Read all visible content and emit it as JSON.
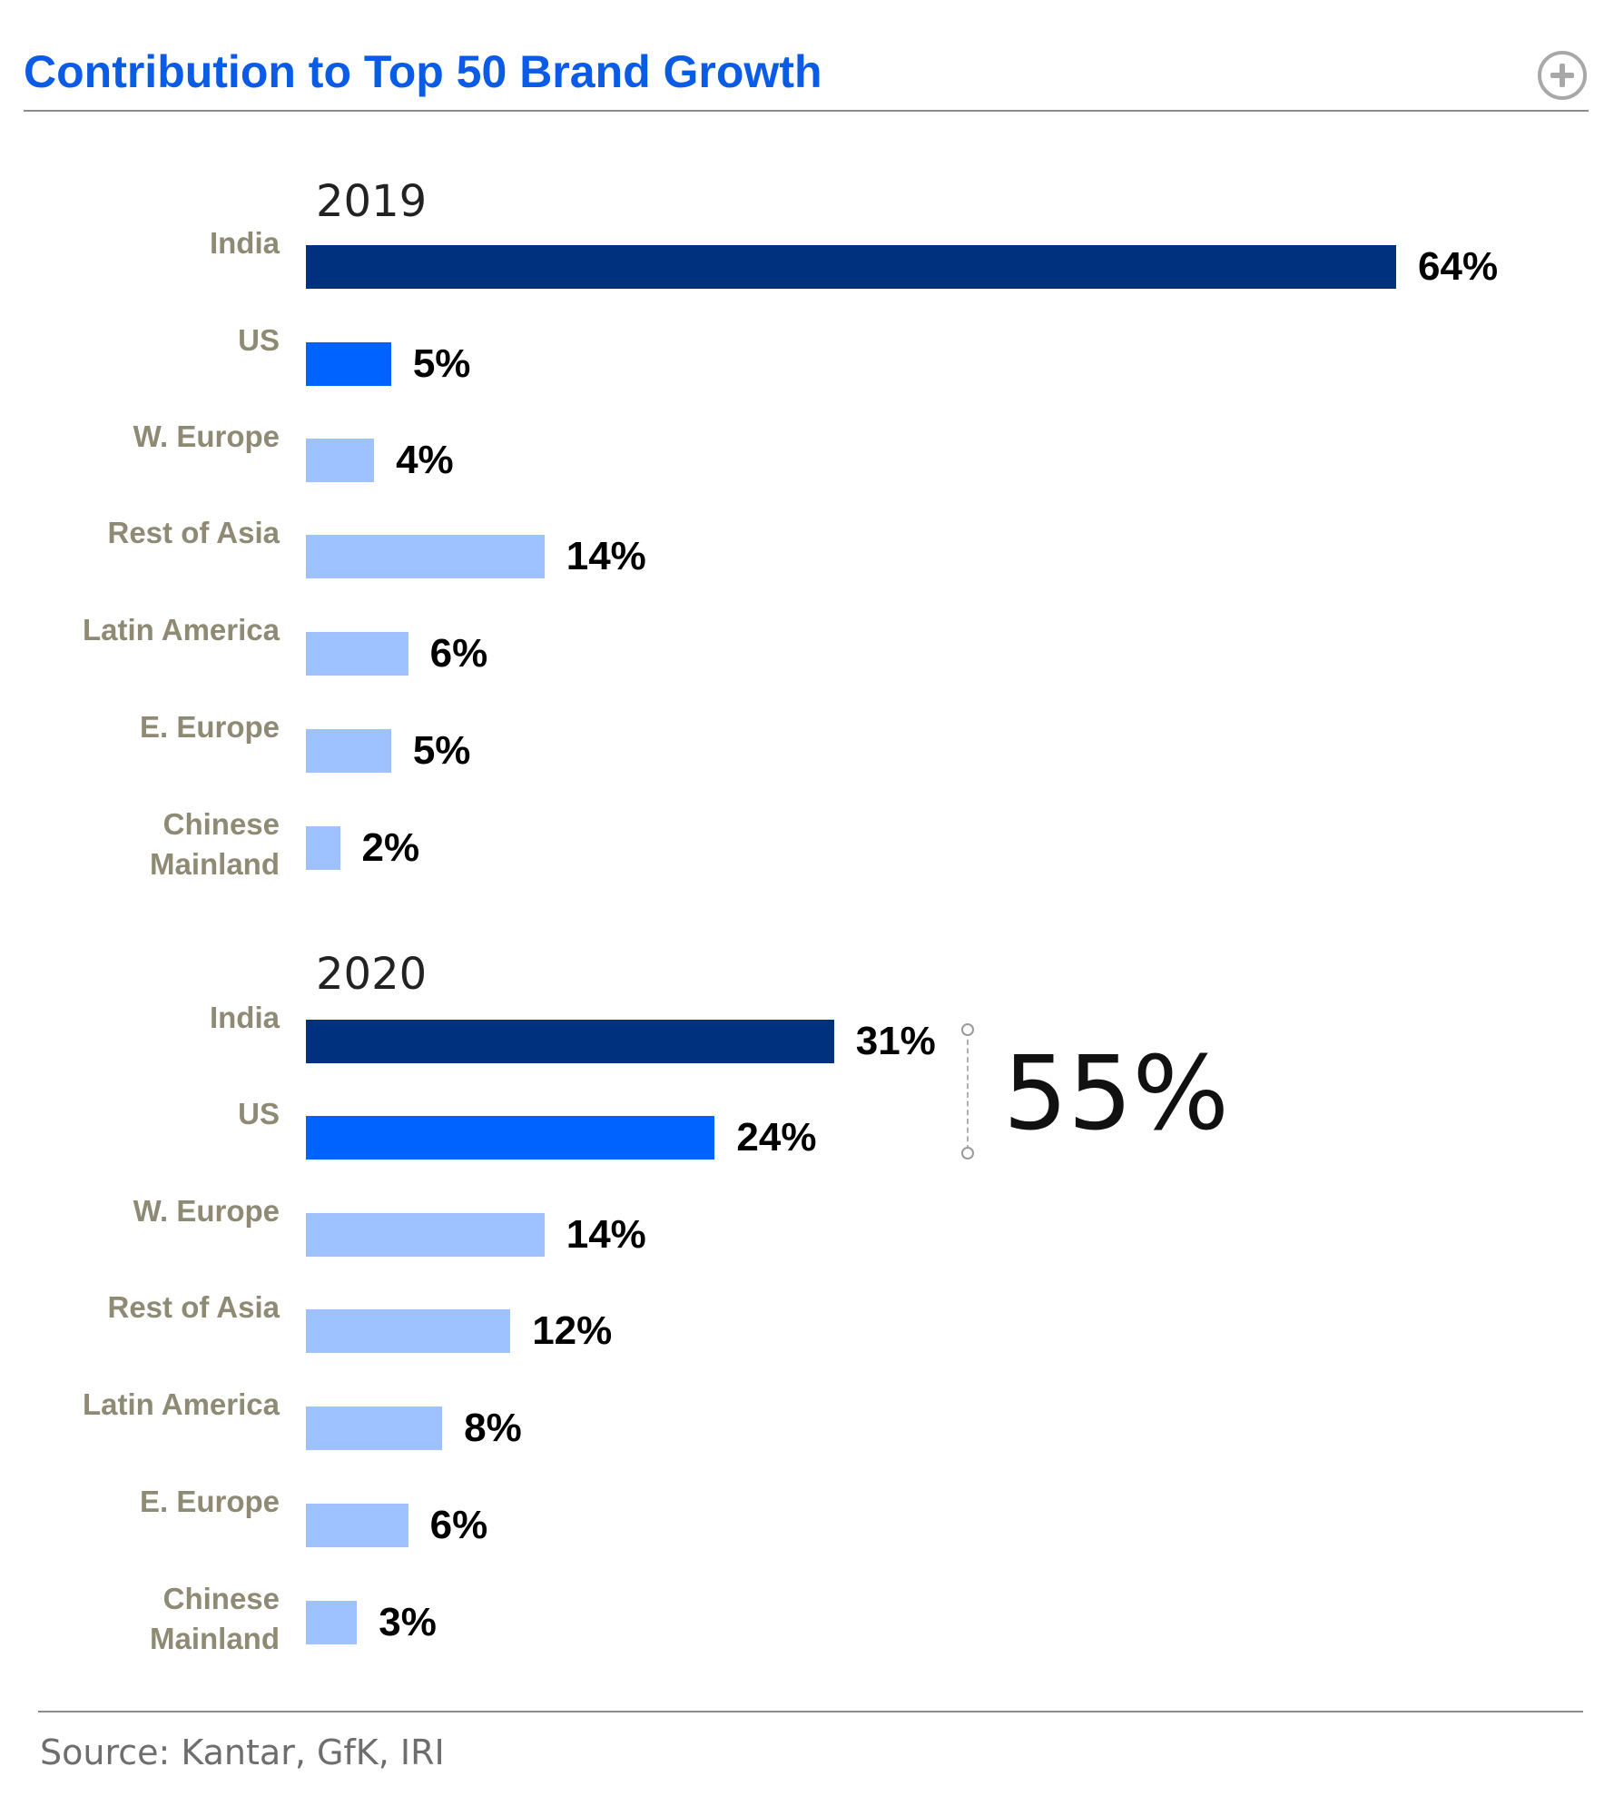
{
  "header": {
    "title": "Contribution to Top 50 Brand Growth",
    "expand_icon": "plus-circle-icon"
  },
  "colors": {
    "title": "#0a5be6",
    "india": "#00317f",
    "us": "#0062ff",
    "other": "#9dc2ff",
    "label": "#8e8a74"
  },
  "chart_data": {
    "type": "bar",
    "orientation": "horizontal",
    "title": "Contribution to Top 50 Brand Growth",
    "unit": "%",
    "xlim": [
      0,
      64
    ],
    "grid": false,
    "categories": [
      {
        "label": "India",
        "lines": [
          "India"
        ]
      },
      {
        "label": "US",
        "lines": [
          "US"
        ]
      },
      {
        "label": "W. Europe",
        "lines": [
          "W. Europe"
        ]
      },
      {
        "label": "Rest of Asia",
        "lines": [
          "Rest of Asia"
        ]
      },
      {
        "label": "Latin America",
        "lines": [
          "Latin America"
        ]
      },
      {
        "label": "E. Europe",
        "lines": [
          "E. Europe"
        ]
      },
      {
        "label": "Chinese Mainland",
        "lines": [
          "Chinese",
          "Mainland"
        ]
      }
    ],
    "panels": [
      {
        "name": "2019",
        "values": [
          64,
          5,
          4,
          14,
          6,
          5,
          2
        ],
        "labels": [
          "64%",
          "5%",
          "4%",
          "14%",
          "6%",
          "5%",
          "2%"
        ]
      },
      {
        "name": "2020",
        "values": [
          31,
          24,
          14,
          12,
          8,
          6,
          3
        ],
        "labels": [
          "31%",
          "24%",
          "14%",
          "12%",
          "8%",
          "6%",
          "3%"
        ]
      }
    ],
    "annotation": {
      "text": "55%",
      "panel": "2020",
      "spans": [
        "India",
        "US"
      ]
    }
  },
  "footer": {
    "source": "Source: Kantar, GfK, IRI"
  }
}
